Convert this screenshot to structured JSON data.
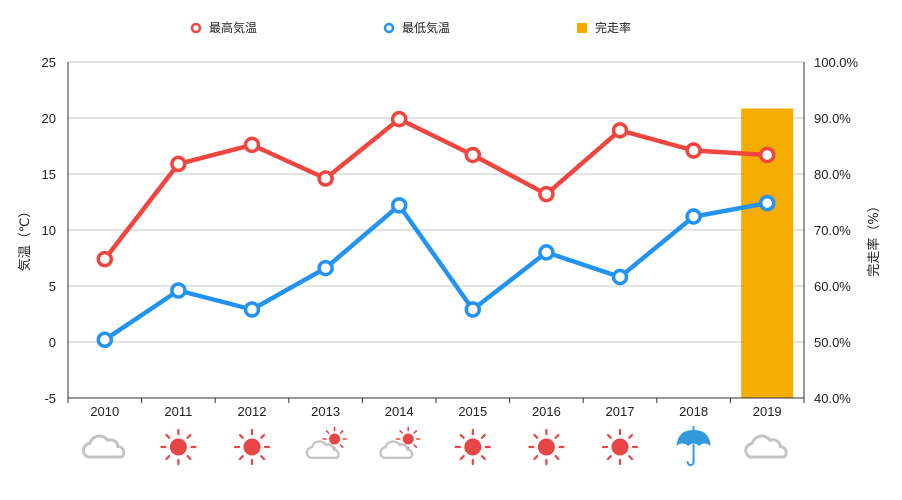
{
  "colors": {
    "max": "#ef4640",
    "min": "#2393f1",
    "bar": "#f4ac00",
    "grid": "#c8c8c8",
    "axis": "#333333",
    "cloud": "#c4c4c4",
    "sun": "#e84545",
    "umbrella": "#3399dd"
  },
  "chart_data": {
    "type": "line",
    "categories": [
      "2010",
      "2011",
      "2012",
      "2013",
      "2014",
      "2015",
      "2016",
      "2017",
      "2018",
      "2019"
    ],
    "series": [
      {
        "name": "最高気温",
        "type": "line",
        "axis": "left",
        "color": "#ef4640",
        "values": [
          7.4,
          15.9,
          17.6,
          14.6,
          19.9,
          16.7,
          13.2,
          18.9,
          17.1,
          16.7
        ]
      },
      {
        "name": "最低気温",
        "type": "line",
        "axis": "left",
        "color": "#2393f1",
        "values": [
          0.2,
          4.6,
          2.9,
          6.6,
          12.2,
          2.9,
          8.0,
          5.8,
          11.2,
          12.4
        ]
      },
      {
        "name": "完走率",
        "type": "bar",
        "axis": "right",
        "color": "#f4ac00",
        "values": [
          null,
          null,
          null,
          null,
          null,
          null,
          null,
          null,
          null,
          91.7
        ]
      }
    ],
    "left_axis": {
      "label": "気温（℃）",
      "range": [
        -5,
        25
      ],
      "ticks": [
        25,
        20,
        15,
        10,
        5,
        0,
        -5
      ],
      "tick_labels": [
        "25",
        "20",
        "15",
        "10",
        "5",
        "0",
        "-5"
      ]
    },
    "right_axis": {
      "label": "完走率（%）",
      "range": [
        40,
        100
      ],
      "ticks": [
        100,
        90,
        80,
        70,
        60,
        50,
        40
      ],
      "tick_labels": [
        "100.0%",
        "90.0%",
        "80.0%",
        "70.0%",
        "60.0%",
        "50.0%",
        "40.0%"
      ]
    },
    "grid": true,
    "legend": {
      "position": "top",
      "items": [
        {
          "label": "最高気温",
          "marker": "circle",
          "color": "#ef4640"
        },
        {
          "label": "最低気温",
          "marker": "circle",
          "color": "#2393f1"
        },
        {
          "label": "完走率",
          "marker": "square",
          "color": "#f4ac00"
        }
      ]
    },
    "weather_icons": [
      "cloud-icon",
      "sun-icon",
      "sun-icon",
      "sun-behind-cloud-icon",
      "sun-behind-cloud-icon",
      "sun-icon",
      "sun-icon",
      "sun-icon",
      "umbrella-icon",
      "cloud-icon"
    ]
  }
}
